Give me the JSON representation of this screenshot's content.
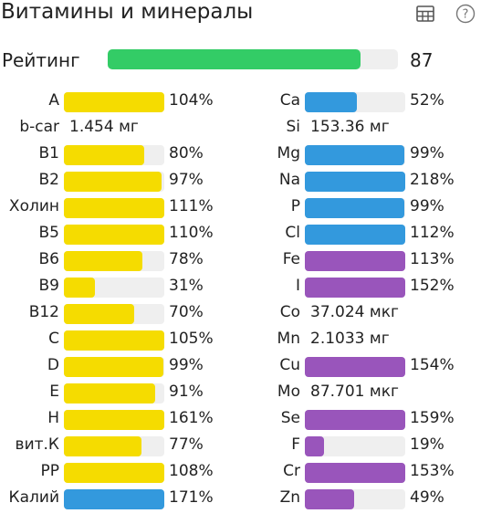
{
  "header": {
    "title": "Витамины и минералы",
    "icons": [
      "table-icon",
      "help-icon"
    ]
  },
  "rating": {
    "label": "Рейтинг",
    "value": "87",
    "fill_fraction": 0.87,
    "color": "#33cc66"
  },
  "colors": {
    "yellow": "#f5dc00",
    "blue": "#3399dd",
    "purple": "#9955bb",
    "track": "#efefef"
  },
  "vitamins": [
    {
      "name": "A",
      "value": "104%",
      "fraction": 1.0
    },
    {
      "name": "b-car",
      "amount": "1.454 мг"
    },
    {
      "name": "B1",
      "value": "80%",
      "fraction": 0.8
    },
    {
      "name": "B2",
      "value": "97%",
      "fraction": 0.97
    },
    {
      "name": "Холин",
      "value": "111%",
      "fraction": 1.0
    },
    {
      "name": "B5",
      "value": "110%",
      "fraction": 1.0
    },
    {
      "name": "B6",
      "value": "78%",
      "fraction": 0.78
    },
    {
      "name": "B9",
      "value": "31%",
      "fraction": 0.31
    },
    {
      "name": "B12",
      "value": "70%",
      "fraction": 0.7
    },
    {
      "name": "C",
      "value": "105%",
      "fraction": 1.0
    },
    {
      "name": "D",
      "value": "99%",
      "fraction": 0.99
    },
    {
      "name": "E",
      "value": "91%",
      "fraction": 0.91
    },
    {
      "name": "H",
      "value": "161%",
      "fraction": 1.0
    },
    {
      "name": "вит.К",
      "value": "77%",
      "fraction": 0.77
    },
    {
      "name": "PP",
      "value": "108%",
      "fraction": 1.0
    },
    {
      "name": "Калий",
      "value": "171%",
      "fraction": 1.0,
      "color": "blue"
    }
  ],
  "minerals": [
    {
      "name": "Ca",
      "value": "52%",
      "fraction": 0.52,
      "color": "blue"
    },
    {
      "name": "Si",
      "amount": "153.36 мг"
    },
    {
      "name": "Mg",
      "value": "99%",
      "fraction": 0.99,
      "color": "blue"
    },
    {
      "name": "Na",
      "value": "218%",
      "fraction": 1.0,
      "color": "blue"
    },
    {
      "name": "P",
      "value": "99%",
      "fraction": 0.99,
      "color": "blue"
    },
    {
      "name": "Cl",
      "value": "112%",
      "fraction": 1.0,
      "color": "blue"
    },
    {
      "name": "Fe",
      "value": "113%",
      "fraction": 1.0,
      "color": "purple"
    },
    {
      "name": "I",
      "value": "152%",
      "fraction": 1.0,
      "color": "purple"
    },
    {
      "name": "Co",
      "amount": "37.024 мкг"
    },
    {
      "name": "Mn",
      "amount": "2.1033 мг"
    },
    {
      "name": "Cu",
      "value": "154%",
      "fraction": 1.0,
      "color": "purple"
    },
    {
      "name": "Mo",
      "amount": "87.701 мкг"
    },
    {
      "name": "Se",
      "value": "159%",
      "fraction": 1.0,
      "color": "purple"
    },
    {
      "name": "F",
      "value": "19%",
      "fraction": 0.19,
      "color": "purple"
    },
    {
      "name": "Cr",
      "value": "153%",
      "fraction": 1.0,
      "color": "purple"
    },
    {
      "name": "Zn",
      "value": "49%",
      "fraction": 0.49,
      "color": "purple"
    }
  ]
}
